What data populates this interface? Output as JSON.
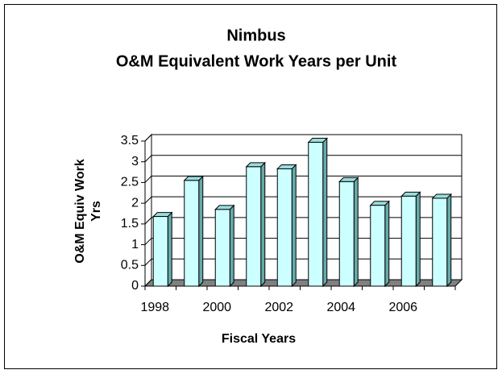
{
  "chart_data": {
    "type": "bar3d",
    "title": "Nimbus",
    "subtitle": "O&M Equivalent Work Years per Unit",
    "y_label": [
      "O&M Equiv Work",
      "Yrs"
    ],
    "x_label": "Fiscal Years",
    "categories": [
      "1998",
      null,
      "2000",
      null,
      "2002",
      null,
      "2004",
      null,
      "2006",
      null
    ],
    "values": [
      1.68,
      2.55,
      1.85,
      2.88,
      2.83,
      3.47,
      2.52,
      1.95,
      2.17,
      2.12
    ],
    "color": "#ccffff",
    "ylim": [
      0,
      3.5
    ],
    "yticks": [
      0,
      0.5,
      1,
      1.5,
      2,
      2.5,
      3,
      3.5
    ],
    "grid": true
  }
}
